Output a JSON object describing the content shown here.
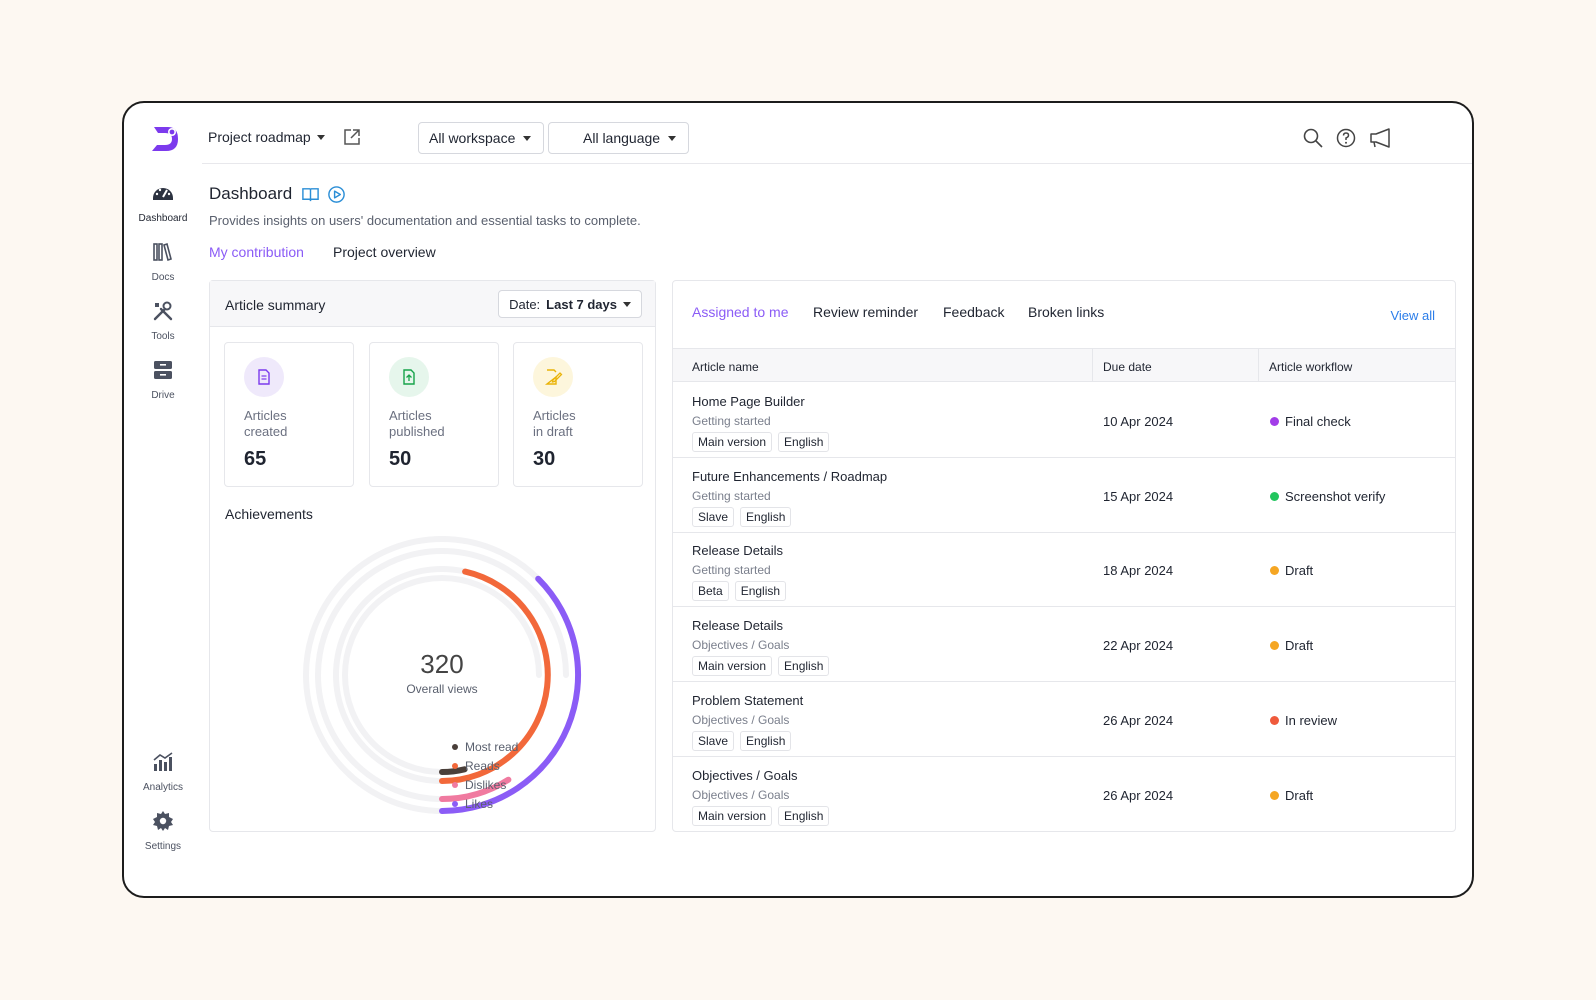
{
  "app": {
    "project_label": "Project roadmap",
    "workspace_dropdown": "All workspace",
    "language_dropdown": "All language",
    "brand_color": "#7c3aed"
  },
  "sidebar": {
    "items": [
      {
        "label": "Dashboard",
        "icon": "dashboard-gauge-icon",
        "active": true
      },
      {
        "label": "Docs",
        "icon": "docs-books-icon"
      },
      {
        "label": "Tools",
        "icon": "tools-icon"
      },
      {
        "label": "Drive",
        "icon": "drive-icon"
      },
      {
        "label": "Analytics",
        "icon": "analytics-chart-icon"
      },
      {
        "label": "Settings",
        "icon": "gear-icon"
      }
    ]
  },
  "header": {
    "title": "Dashboard",
    "subtitle": "Provides insights on users' documentation and essential tasks to complete.",
    "tabs": [
      {
        "label": "My contribution",
        "active": true
      },
      {
        "label": "Project overview"
      }
    ]
  },
  "summary": {
    "title": "Article summary",
    "date_prefix": "Date:",
    "date_value": "Last 7 days",
    "stats": [
      {
        "line1": "Articles",
        "line2": "created",
        "value": "65",
        "color": "#7c3aed",
        "bg": "#efe9fb",
        "icon": "document-icon"
      },
      {
        "line1": "Articles",
        "line2": "published",
        "value": "50",
        "color": "#16a34a",
        "bg": "#e6f6ec",
        "icon": "document-published-icon"
      },
      {
        "line1": "Articles",
        "line2": "in draft",
        "value": "30",
        "color": "#eab308",
        "bg": "#fdf6dc",
        "icon": "document-draft-icon"
      }
    ],
    "achievements_title": "Achievements"
  },
  "chart_data": {
    "type": "radial-bar",
    "center_value": "320",
    "center_label": "Overall views",
    "series": [
      {
        "name": "Most read",
        "color": "#4a3f3a",
        "fraction": 0.05
      },
      {
        "name": "Reads",
        "color": "#f2683a",
        "fraction": 0.62
      },
      {
        "name": "Dislikes",
        "color": "#f07aa0",
        "fraction": 0.12
      },
      {
        "name": "Likes",
        "color": "#8b5cf6",
        "fraction": 0.5
      }
    ]
  },
  "tasks": {
    "tabs": [
      {
        "label": "Assigned to me",
        "active": true
      },
      {
        "label": "Review reminder"
      },
      {
        "label": "Feedback"
      },
      {
        "label": "Broken links"
      }
    ],
    "view_all": "View all",
    "columns": [
      "Article name",
      "Due date",
      "Article workflow"
    ],
    "rows": [
      {
        "name": "Home Page Builder",
        "category": "Getting started",
        "tags": [
          "Main version",
          "English"
        ],
        "due": "10 Apr 2024",
        "workflow": "Final check",
        "status_color": "#a23de8"
      },
      {
        "name": "Future Enhancements / Roadmap",
        "category": "Getting started",
        "tags": [
          "Slave",
          "English"
        ],
        "due": "15 Apr 2024",
        "workflow": "Screenshot verify",
        "status_color": "#22c55e"
      },
      {
        "name": "Release Details",
        "category": "Getting started",
        "tags": [
          "Beta",
          "English"
        ],
        "due": "18 Apr 2024",
        "workflow": "Draft",
        "status_color": "#f5a623"
      },
      {
        "name": "Release Details",
        "category": "Objectives / Goals",
        "tags": [
          "Main version",
          "English"
        ],
        "due": "22 Apr 2024",
        "workflow": "Draft",
        "status_color": "#f5a623"
      },
      {
        "name": "Problem Statement",
        "category": "Objectives / Goals",
        "tags": [
          "Slave",
          "English"
        ],
        "due": "26 Apr 2024",
        "workflow": "In review",
        "status_color": "#ef5a3c"
      },
      {
        "name": "Objectives / Goals",
        "category": "Objectives / Goals",
        "tags": [
          "Main version",
          "English"
        ],
        "due": "26 Apr 2024",
        "workflow": "Draft",
        "status_color": "#f5a623"
      }
    ]
  }
}
